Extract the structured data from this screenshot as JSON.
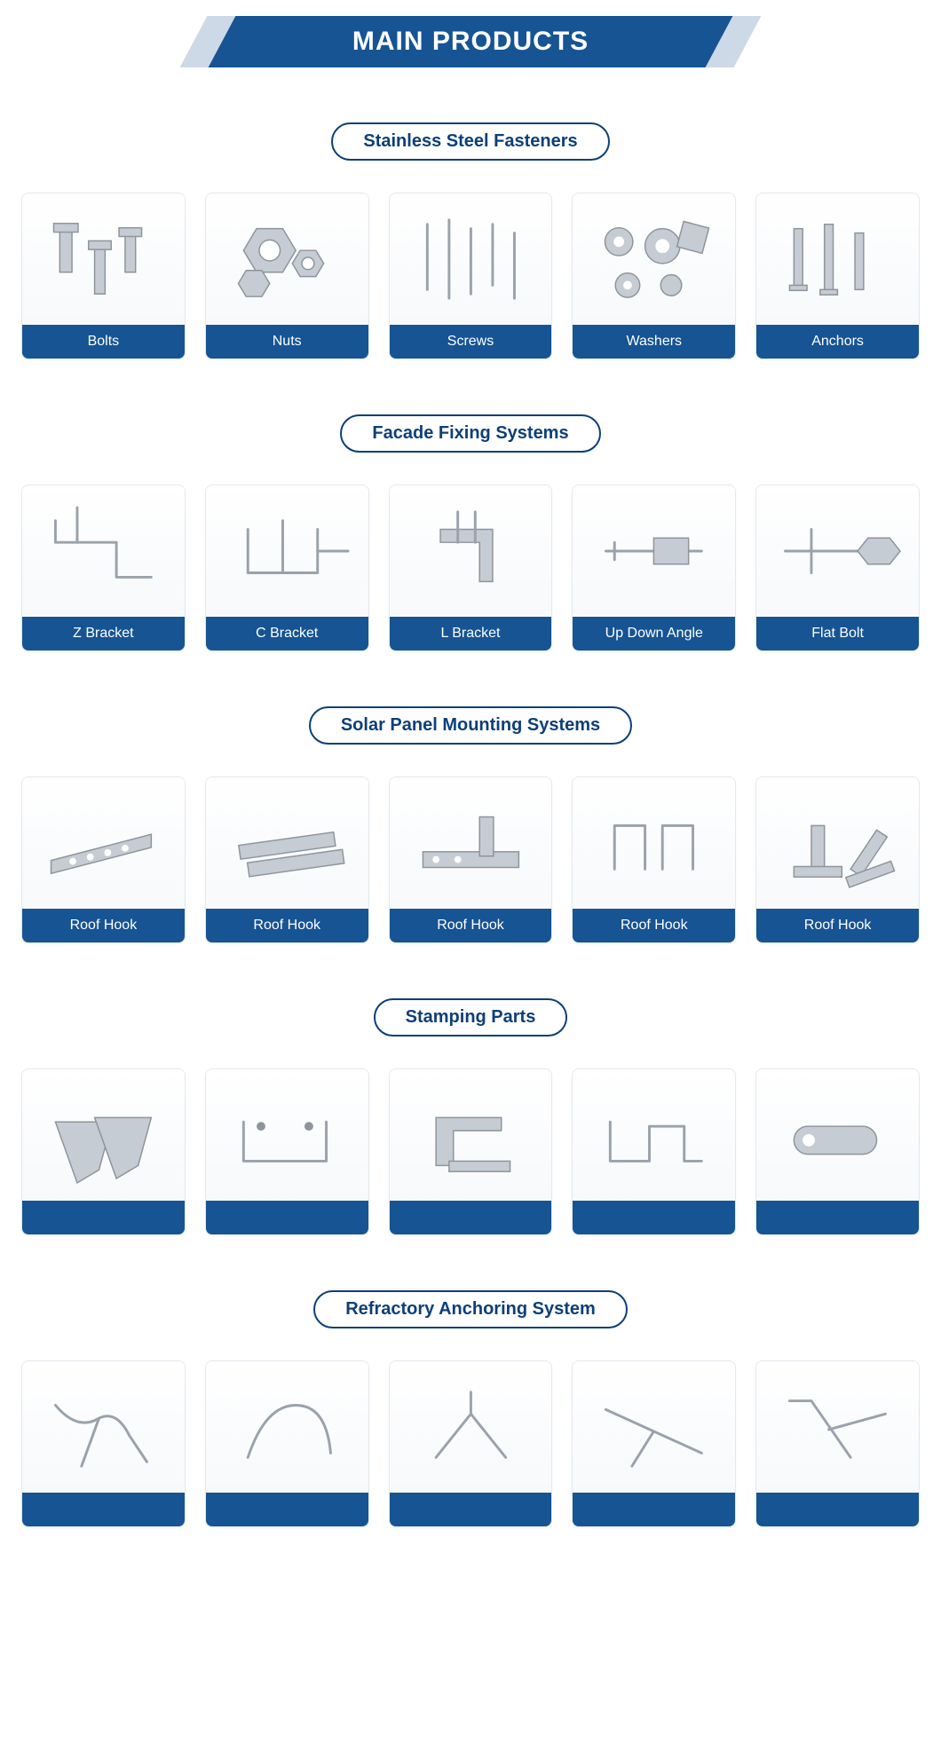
{
  "colors": {
    "brand_blue": "#165493",
    "brand_blue_dark": "#0d3f78",
    "banner_outer": "#cdd9e6",
    "card_border": "#e3e9ef",
    "white": "#ffffff",
    "metal_fill": "#c6ccd3",
    "metal_stroke": "#8d949c"
  },
  "banner": {
    "title": "MAIN PRODUCTS"
  },
  "sections": [
    {
      "title": "Stainless Steel Fasteners",
      "items": [
        {
          "label": "Bolts",
          "icon": "bolts"
        },
        {
          "label": "Nuts",
          "icon": "nuts"
        },
        {
          "label": "Screws",
          "icon": "screws"
        },
        {
          "label": "Washers",
          "icon": "washers"
        },
        {
          "label": "Anchors",
          "icon": "anchors"
        }
      ]
    },
    {
      "title": "Facade Fixing Systems",
      "items": [
        {
          "label": "Z Bracket",
          "icon": "zbracket"
        },
        {
          "label": "C Bracket",
          "icon": "cbracket"
        },
        {
          "label": "L Bracket",
          "icon": "lbracket"
        },
        {
          "label": "Up Down Angle",
          "icon": "updown"
        },
        {
          "label": "Flat Bolt",
          "icon": "flatbolt"
        }
      ]
    },
    {
      "title": "Solar Panel Mounting Systems",
      "items": [
        {
          "label": "Roof Hook",
          "icon": "hook1"
        },
        {
          "label": "Roof Hook",
          "icon": "hook2"
        },
        {
          "label": "Roof Hook",
          "icon": "hook3"
        },
        {
          "label": "Roof Hook",
          "icon": "hook4"
        },
        {
          "label": "Roof Hook",
          "icon": "hook5"
        }
      ]
    },
    {
      "title": "Stamping Parts",
      "items": [
        {
          "label": "",
          "icon": "stamp1"
        },
        {
          "label": "",
          "icon": "stamp2"
        },
        {
          "label": "",
          "icon": "stamp3"
        },
        {
          "label": "",
          "icon": "stamp4"
        },
        {
          "label": "",
          "icon": "stamp5"
        }
      ]
    },
    {
      "title": "Refractory Anchoring System",
      "items": [
        {
          "label": "",
          "icon": "ref1"
        },
        {
          "label": "",
          "icon": "ref2"
        },
        {
          "label": "",
          "icon": "ref3"
        },
        {
          "label": "",
          "icon": "ref4"
        },
        {
          "label": "",
          "icon": "ref5"
        }
      ]
    }
  ]
}
